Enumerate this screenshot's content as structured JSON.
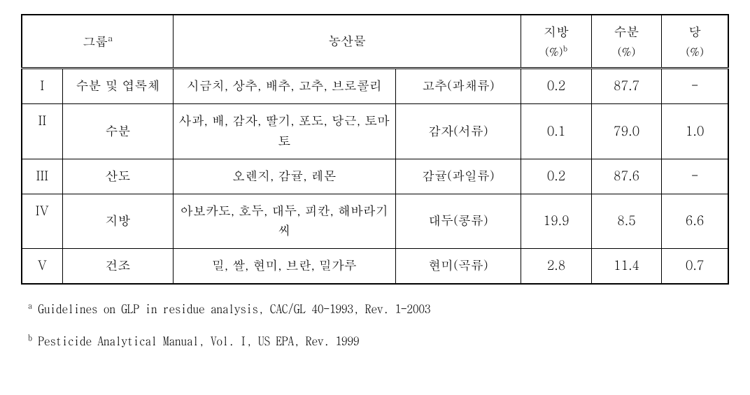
{
  "table": {
    "border_color": "#000000",
    "background_color": "#ffffff",
    "text_color": "#000000",
    "font_size_cell": 18,
    "font_size_footnote": 17,
    "headers": {
      "group": "그룹",
      "group_sup": "a",
      "produce": "농산물",
      "fat": "지방",
      "fat_unit": "(%)",
      "fat_sup": "b",
      "water": "수분",
      "water_unit": "(%)",
      "sugar": "당",
      "sugar_unit": "(%)"
    },
    "rows": [
      {
        "num": "I",
        "group": "수분 및 엽록체",
        "items": "시금치, 상추, 배추, 고추, 브로콜리",
        "rep": "고추(과채류)",
        "fat": "0.2",
        "water": "87.7",
        "sugar": "-"
      },
      {
        "num": "II",
        "group": "수분",
        "items": "사과, 배, 감자, 딸기, 포도, 당근, 토마토",
        "rep": "감자(서류)",
        "fat": "0.1",
        "water": "79.0",
        "sugar": "1.0"
      },
      {
        "num": "III",
        "group": "산도",
        "items": "오렌지, 감귤, 레몬",
        "rep": "감귤(과일류)",
        "fat": "0.2",
        "water": "87.6",
        "sugar": "-"
      },
      {
        "num": "IV",
        "group": "지방",
        "items": "아보카도, 호두, 대두, 피칸, 해바라기씨",
        "rep": "대두(콩류)",
        "fat": "19.9",
        "water": "8.5",
        "sugar": "6.6"
      },
      {
        "num": "V",
        "group": "건조",
        "items": "밀, 쌀, 현미, 브란, 밀가루",
        "rep": "현미(곡류)",
        "fat": "2.8",
        "water": "11.4",
        "sugar": "0.7"
      }
    ]
  },
  "footnotes": {
    "a_sup": "a",
    "a_text": " Guidelines on GLP in residue analysis, CAC/GL 40-1993, Rev. 1-2003",
    "b_sup": "b",
    "b_text": " Pesticide Analytical Manual, Vol. I, US EPA, Rev. 1999"
  }
}
